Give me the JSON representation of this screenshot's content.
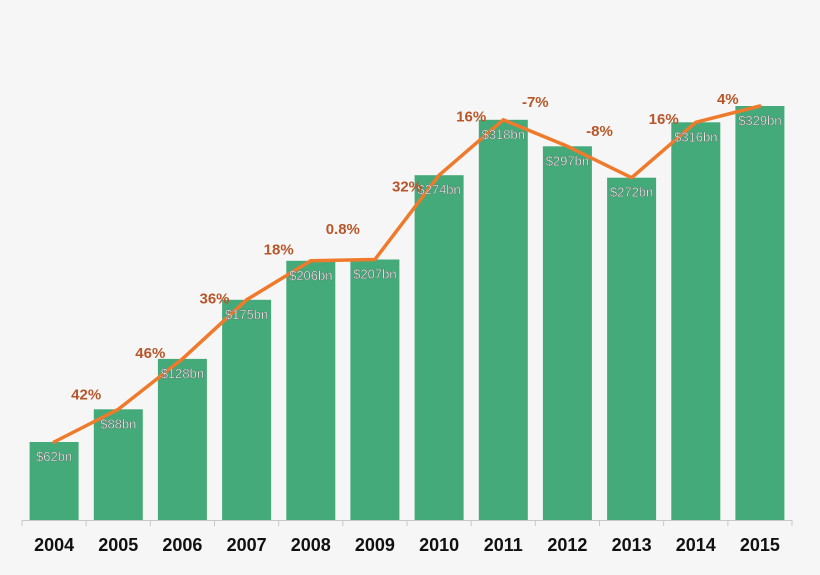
{
  "chart_data": {
    "type": "bar",
    "categories": [
      "2004",
      "2005",
      "2006",
      "2007",
      "2008",
      "2009",
      "2010",
      "2011",
      "2012",
      "2013",
      "2014",
      "2015"
    ],
    "series": [
      {
        "name": "",
        "type": "bar",
        "values": [
          62,
          88,
          128,
          175,
          206,
          207,
          274,
          318,
          297,
          272,
          316,
          329
        ]
      },
      {
        "name": "",
        "type": "line",
        "values": [
          62,
          88,
          128,
          175,
          206,
          207,
          274,
          318,
          297,
          272,
          316,
          329
        ]
      }
    ],
    "bar_labels": [
      "$62bn",
      "$88bn",
      "$128bn",
      "$175bn",
      "$206bn",
      "$207bn",
      "$274bn",
      "$318bn",
      "$297bn",
      "$272bn",
      "$316bn",
      "$329bn"
    ],
    "growth_labels": [
      "42%",
      "46%",
      "36%",
      "18%",
      "0.8%",
      "32%",
      "16%",
      "-7%",
      "-8%",
      "16%",
      "4%"
    ],
    "title": "",
    "xlabel": "",
    "ylabel": "",
    "ylim": [
      0,
      360
    ],
    "grid": false,
    "legend": "none",
    "colors": {
      "bar": "#44aa7a",
      "line": "#f07a2c",
      "growth_label": "#b8562a",
      "bar_label": "#ffffff",
      "axis": "#c8c8c8",
      "tick_label": "#111111"
    }
  }
}
